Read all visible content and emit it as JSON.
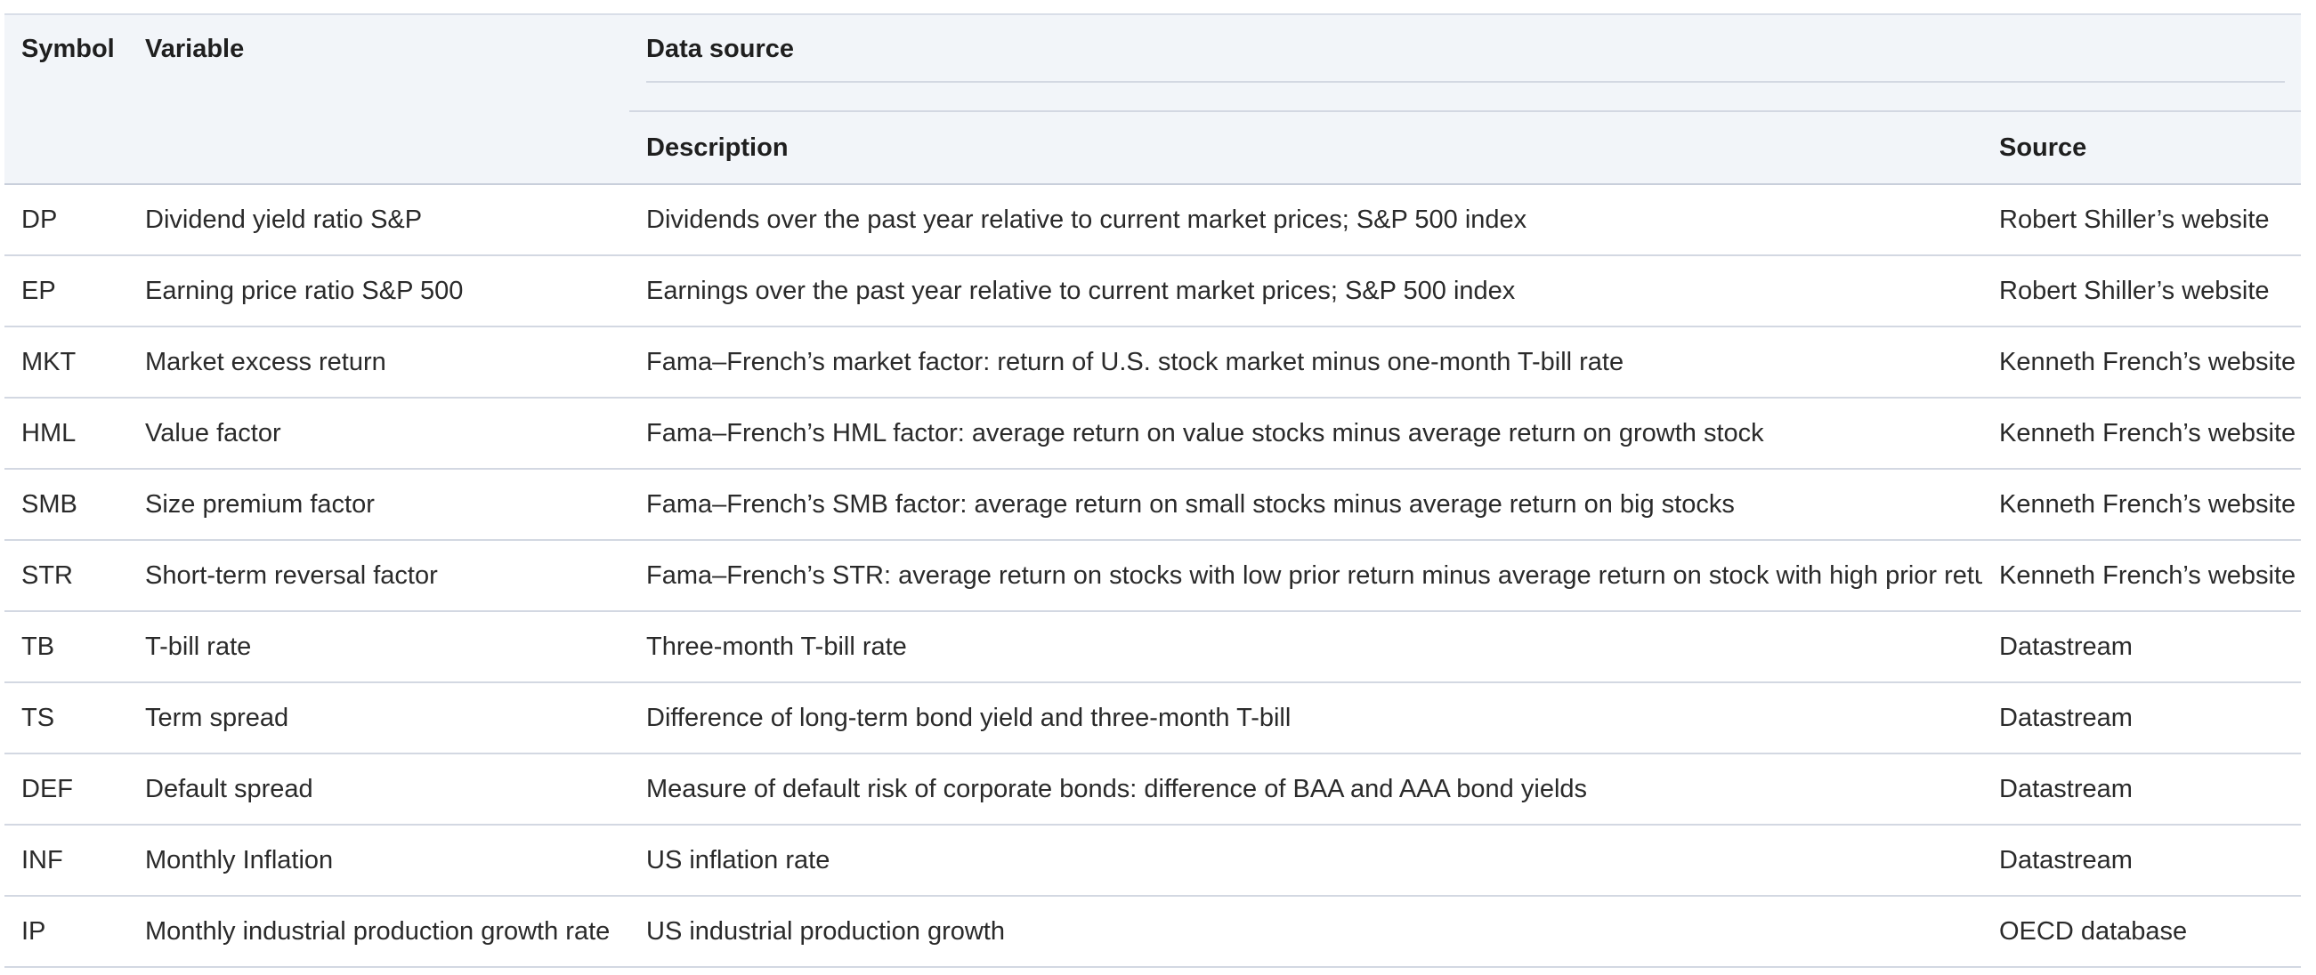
{
  "header": {
    "symbol": "Symbol",
    "variable": "Variable",
    "data_source": "Data source",
    "description": "Description",
    "source": "Source"
  },
  "rows": [
    {
      "symbol": "DP",
      "variable": "Dividend yield ratio S&P",
      "description": "Dividends over the past year relative to current market prices; S&P 500 index",
      "source": "Robert Shiller’s website"
    },
    {
      "symbol": "EP",
      "variable": "Earning price ratio S&P 500",
      "description": "Earnings over the past year relative to current market prices; S&P 500 index",
      "source": "Robert Shiller’s website"
    },
    {
      "symbol": "MKT",
      "variable": "Market excess return",
      "description": "Fama–French’s market factor: return of U.S. stock market minus one-month T-bill rate",
      "source": "Kenneth French’s website"
    },
    {
      "symbol": "HML",
      "variable": "Value factor",
      "description": "Fama–French’s HML factor: average return on value stocks minus average return on growth stock",
      "source": "Kenneth French’s website"
    },
    {
      "symbol": "SMB",
      "variable": "Size premium factor",
      "description": "Fama–French’s SMB factor: average return on small stocks minus average return on big stocks",
      "source": "Kenneth French’s website"
    },
    {
      "symbol": "STR",
      "variable": "Short-term reversal factor",
      "description": "Fama–French’s STR: average return on stocks with low prior return minus average return on stock with high prior return",
      "source": "Kenneth French’s website"
    },
    {
      "symbol": "TB",
      "variable": "T-bill rate",
      "description": "Three-month T-bill rate",
      "source": "Datastream"
    },
    {
      "symbol": "TS",
      "variable": "Term spread",
      "description": "Difference of long-term bond yield and three-month T-bill",
      "source": "Datastream"
    },
    {
      "symbol": "DEF",
      "variable": "Default spread",
      "description": "Measure of default risk of corporate bonds: difference of BAA and AAA bond yields",
      "source": "Datastream"
    },
    {
      "symbol": "INF",
      "variable": "Monthly Inflation",
      "description": "US inflation rate",
      "source": "Datastream"
    },
    {
      "symbol": "IP",
      "variable": "Monthly industrial production growth rate",
      "description": "US industrial production growth",
      "source": "OECD database"
    }
  ]
}
